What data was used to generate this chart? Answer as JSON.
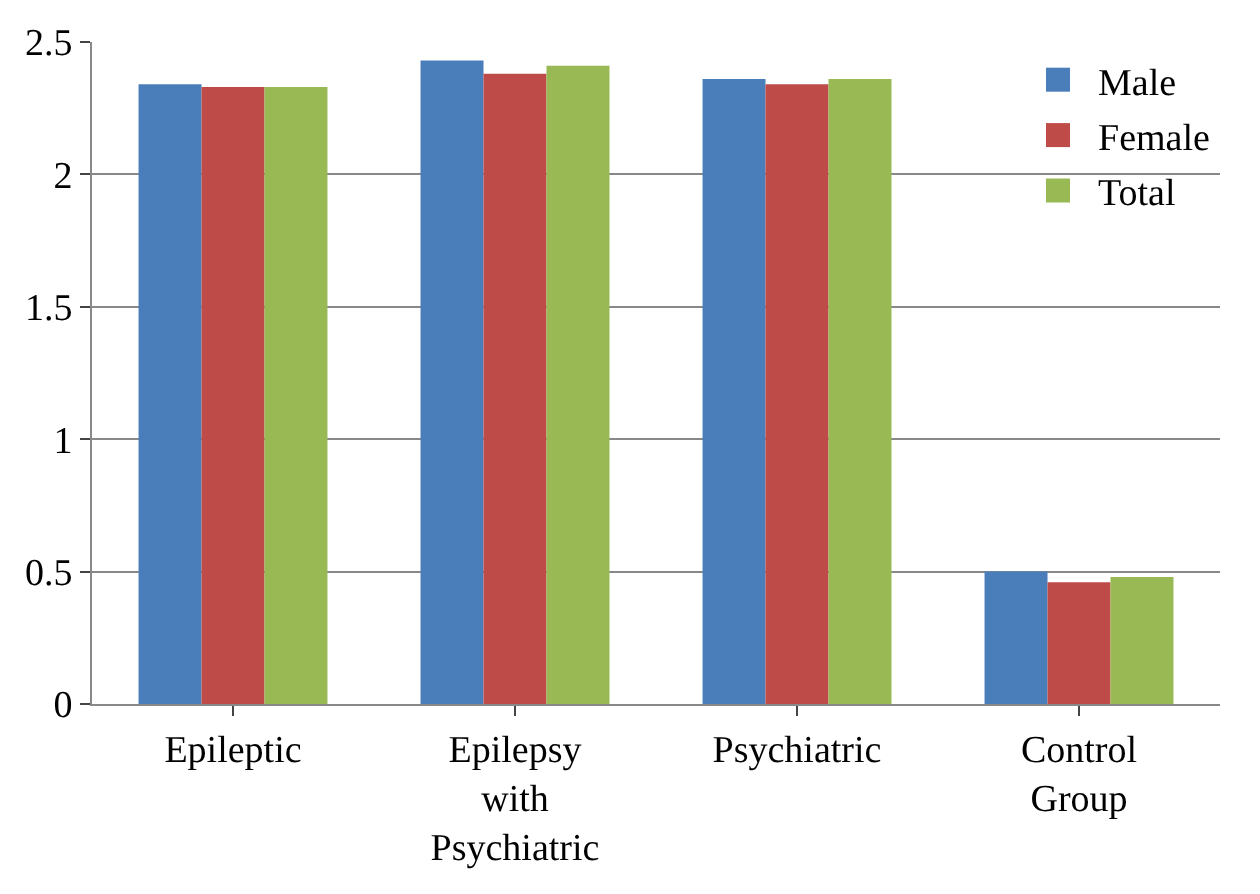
{
  "chart_data": {
    "type": "bar",
    "categories": [
      "Epileptic",
      "Epilepsy with Psychiatric",
      "Psychiatric",
      "Control Group"
    ],
    "series": [
      {
        "name": "Male",
        "color": "#4a7ebb",
        "values": [
          2.34,
          2.43,
          2.36,
          0.5
        ]
      },
      {
        "name": "Female",
        "color": "#be4b48",
        "values": [
          2.33,
          2.38,
          2.34,
          0.46
        ]
      },
      {
        "name": "Total",
        "color": "#98b954",
        "values": [
          2.33,
          2.41,
          2.36,
          0.48
        ]
      }
    ],
    "ylim": [
      0,
      2.5
    ],
    "yticks": [
      0,
      0.5,
      1,
      1.5,
      2,
      2.5
    ],
    "grid": "y",
    "legend": "top right"
  }
}
